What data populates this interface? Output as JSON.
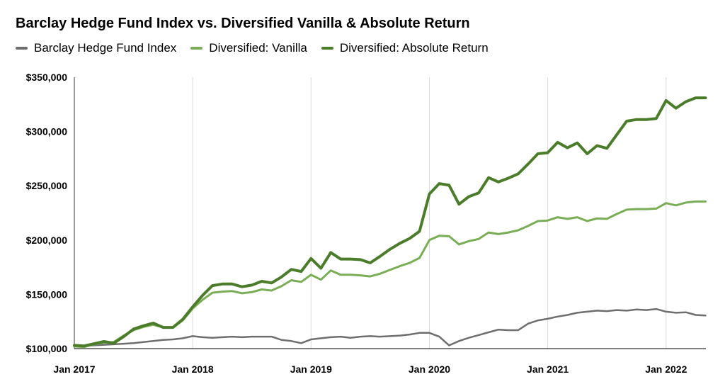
{
  "chart_data": {
    "type": "line",
    "title": "Barclay Hedge Fund Index vs. Diversified Vanilla & Absolute Return",
    "xlabel": "",
    "ylabel": "",
    "x_start": "2017-01",
    "x_range": [
      "2017-01",
      "2022-05"
    ],
    "ylim": [
      100000,
      350000
    ],
    "y_ticks": [
      100000,
      150000,
      200000,
      250000,
      300000,
      350000
    ],
    "y_tick_labels": [
      "$100,000",
      "$150,000",
      "$200,000",
      "$250,000",
      "$300,000",
      "$350,000"
    ],
    "x_tick_labels": [
      "Jan 2017",
      "Jan 2018",
      "Jan 2019",
      "Jan 2020",
      "Jan 2021",
      "Jan 2022"
    ],
    "x_tick_dates": [
      "2017-01",
      "2018-01",
      "2019-01",
      "2020-01",
      "2021-01",
      "2022-01"
    ],
    "grid": {
      "vertical": true,
      "horizontal": false
    },
    "legend_position": "top-left",
    "series": [
      {
        "name": "Barclay Hedge Fund Index",
        "color": "#6e6e6e",
        "values": [
          102000,
          102500,
          103000,
          103500,
          104000,
          104500,
          105000,
          106000,
          107000,
          108000,
          108500,
          109500,
          111500,
          110500,
          110000,
          110500,
          111000,
          110500,
          111000,
          111000,
          111000,
          108000,
          107000,
          105000,
          108500,
          109500,
          110500,
          111000,
          110000,
          111000,
          111500,
          111000,
          111500,
          112000,
          113000,
          114500,
          114500,
          111000,
          103000,
          107000,
          110000,
          112500,
          115000,
          117500,
          117000,
          117000,
          123000,
          126000,
          127500,
          129500,
          131000,
          133000,
          134000,
          135000,
          134500,
          135500,
          135000,
          136000,
          135500,
          136500,
          134000,
          133000,
          133500,
          131000,
          130500
        ]
      },
      {
        "name": "Diversified: Vanilla",
        "color": "#7aae56",
        "values": [
          102000,
          101500,
          104000,
          105500,
          106000,
          112000,
          117000,
          120000,
          122000,
          119500,
          119500,
          126000,
          137000,
          145000,
          151500,
          152500,
          153000,
          151000,
          152000,
          154500,
          153500,
          157500,
          163000,
          161500,
          168000,
          163500,
          172000,
          168000,
          168000,
          167500,
          166500,
          169000,
          172500,
          176000,
          179000,
          183500,
          200000,
          204000,
          203500,
          196000,
          199000,
          201000,
          207000,
          205500,
          207000,
          209000,
          213000,
          217500,
          218000,
          221000,
          219500,
          221000,
          217500,
          220000,
          219500,
          224000,
          228000,
          228500,
          228500,
          229000,
          234000,
          232000,
          234500,
          235500,
          235500
        ]
      },
      {
        "name": "Diversified: Absolute Return",
        "color": "#4a7c2a",
        "values": [
          103000,
          102500,
          104500,
          106500,
          105000,
          111000,
          118000,
          121000,
          123500,
          119500,
          119500,
          127000,
          138500,
          149000,
          158000,
          159500,
          159500,
          157000,
          158500,
          162000,
          160500,
          166000,
          173000,
          171000,
          183000,
          174000,
          188500,
          182500,
          182500,
          182000,
          179000,
          185000,
          191500,
          197000,
          201500,
          208000,
          242500,
          252000,
          250500,
          233000,
          240000,
          243500,
          257500,
          253500,
          257000,
          261000,
          270000,
          279500,
          280500,
          290000,
          285000,
          289500,
          279500,
          287000,
          284500,
          297000,
          309500,
          311000,
          311000,
          312000,
          328500,
          321500,
          327500,
          331000,
          331000
        ]
      }
    ]
  }
}
